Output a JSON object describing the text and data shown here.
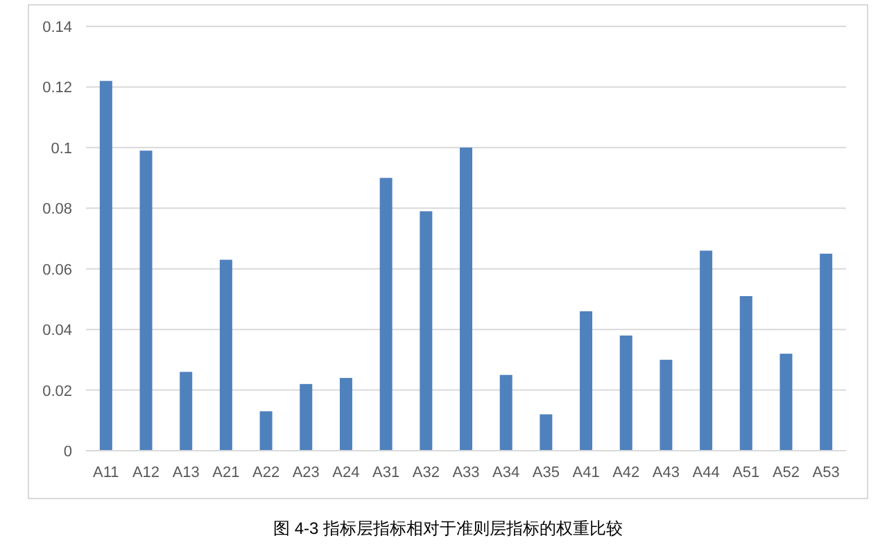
{
  "chart_data": {
    "type": "bar",
    "title": "图 4-3 指标层指标相对于准则层指标的权重比较",
    "categories": [
      "A11",
      "A12",
      "A13",
      "A21",
      "A22",
      "A23",
      "A24",
      "A31",
      "A32",
      "A33",
      "A34",
      "A35",
      "A41",
      "A42",
      "A43",
      "A44",
      "A51",
      "A52",
      "A53"
    ],
    "values": [
      0.122,
      0.099,
      0.026,
      0.063,
      0.013,
      0.022,
      0.024,
      0.09,
      0.079,
      0.1,
      0.025,
      0.012,
      0.046,
      0.038,
      0.03,
      0.066,
      0.051,
      0.032,
      0.065
    ],
    "color": "#4f81bd",
    "ylim": [
      0,
      0.14
    ],
    "yticks": [
      0,
      0.02,
      0.04,
      0.06,
      0.08,
      0.1,
      0.12,
      0.14
    ],
    "grid": "y"
  }
}
